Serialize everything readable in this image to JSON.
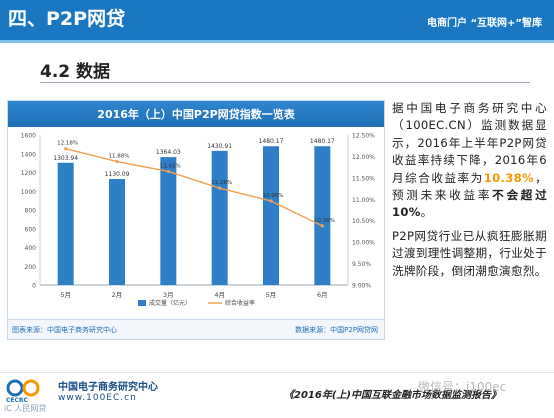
{
  "header": {
    "title": "四、P2P网贷",
    "right_text": "电商门户 “互联网+”智库"
  },
  "section": {
    "title": "4.2 数据"
  },
  "chart_data": {
    "type": "bar",
    "title": "2016年（上）中国P2P网贷指数一览表",
    "categories": [
      "5月",
      "2月",
      "3月",
      "4月",
      "5月",
      "6月"
    ],
    "series": [
      {
        "name": "成交量（亿元）",
        "type": "bar",
        "axis": "left",
        "values": [
          1303.94,
          1130.09,
          1364.03,
          1430.91,
          1480.17,
          1480.17
        ],
        "labels": [
          "1303.94",
          "1130.09",
          "1364.03",
          "1430.91",
          "1480.17",
          "1480.17"
        ]
      },
      {
        "name": "综合收益率",
        "type": "line",
        "axis": "right",
        "values": [
          12.18,
          11.88,
          11.65,
          11.26,
          10.96,
          10.38
        ],
        "labels": [
          "12.18%",
          "11.88%",
          "11.65%",
          "11.26%",
          "10.96%",
          "10.38%"
        ]
      }
    ],
    "y_left": {
      "min": 0,
      "max": 1600,
      "ticks": [
        "0",
        "200",
        "400",
        "600",
        "800",
        "1000",
        "1200",
        "1400",
        "1600"
      ]
    },
    "y_right": {
      "min": 9.0,
      "max": 12.5,
      "ticks": [
        "9.00%",
        "9.50%",
        "10.00%",
        "10.50%",
        "11.00%",
        "11.50%",
        "12.00%",
        "12.50%"
      ]
    },
    "legend_position": "bottom",
    "grid": false,
    "colors": {
      "bar": "#2f7fc8",
      "line": "#f0a050",
      "banner": "#1f6fb6"
    },
    "source": "图表来源：中国电子商务研究中心",
    "brand": "数据来源：中国P2P网贷网"
  },
  "side": {
    "p1_a": "据中国电子商务研究中心（100EC.CN）监测数据显示，2016年上半年P2P网贷收益率持续下降，2016年6月综合收益率为",
    "p1_highlight": "10.38%",
    "p1_b": "，预测未来收益率",
    "p1_bold": "不会超过10%",
    "p1_c": "。",
    "p2": "P2P网贷行业已从疯狂膨胀期过渡到理性调整期，行业处于洗牌阶段，倒闭潮愈演愈烈。"
  },
  "footer": {
    "logo_text": "CECRC",
    "org_name": "中国电子商务研究中心",
    "url": "www.100EC.cn",
    "report": "《2016年(上)中国互联",
    "report_tail": "金融市场数据监测报告》",
    "watermark": "微信号：i100ec",
    "corner": "iC 人民网贷"
  }
}
